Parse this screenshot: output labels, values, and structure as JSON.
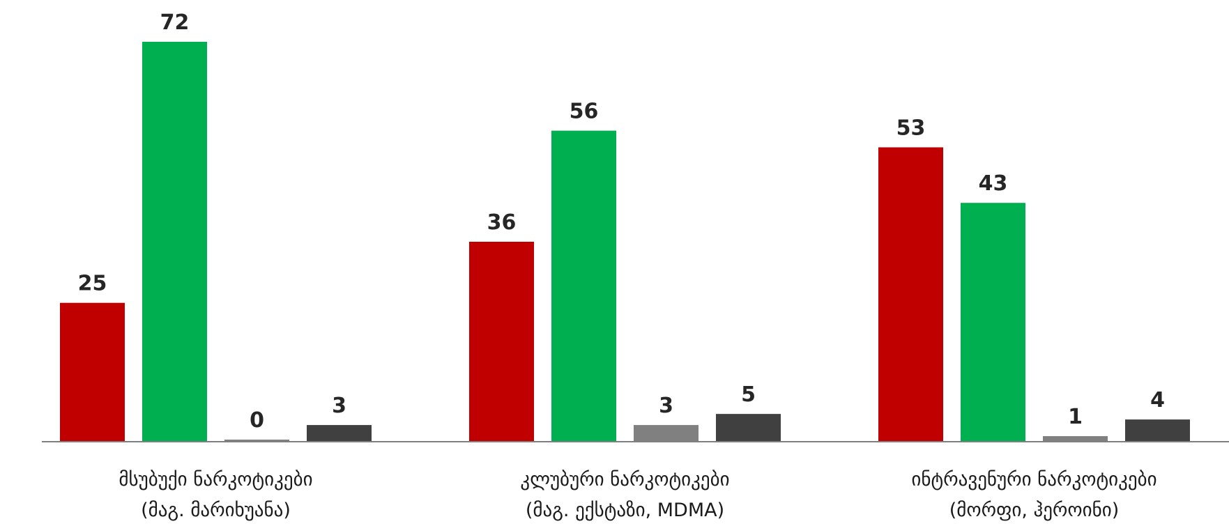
{
  "chart_data": {
    "type": "bar",
    "categories": [
      [
        "მსუბუქი ნარკოტიკები",
        "(მაგ. მარიხუანა)"
      ],
      [
        "კლუბური ნარკოტიკები",
        "(მაგ. ექსტაზი, MDMA)"
      ],
      [
        "ინტრავენური ნარკოტიკები",
        "(მორფი, ჰეროინი)"
      ]
    ],
    "series": [
      {
        "color": "#c00000",
        "values": [
          25,
          36,
          53
        ]
      },
      {
        "color": "#00b050",
        "values": [
          72,
          56,
          43
        ]
      },
      {
        "color": "#808080",
        "values": [
          0,
          3,
          1
        ]
      },
      {
        "color": "#404040",
        "values": [
          3,
          5,
          4
        ]
      }
    ],
    "ylim": [
      0,
      80
    ],
    "grid": false,
    "legend": "none"
  }
}
